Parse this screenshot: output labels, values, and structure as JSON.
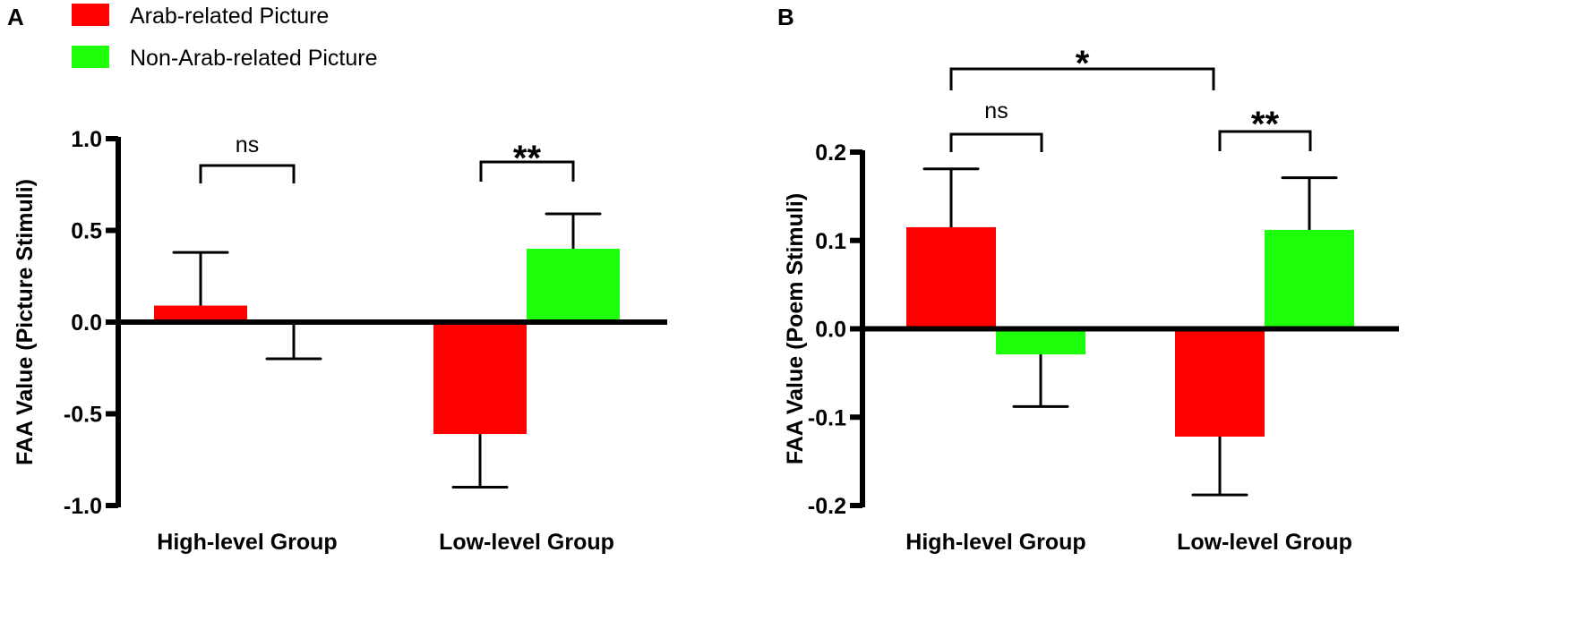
{
  "legend": {
    "items": [
      {
        "label": "Arab-related Picture",
        "color": "#ff0000"
      },
      {
        "label": "Non-Arab-related Picture",
        "color": "#1eff0a"
      }
    ],
    "placement": "top-left"
  },
  "chart_data": [
    {
      "type": "bar",
      "panel_label": "A",
      "categories": [
        "High-level Group",
        "Low-level Group"
      ],
      "ylabel": "FAA Value (Picture Stimuli)",
      "xlabel": "",
      "ylim": [
        -1.0,
        1.0
      ],
      "yticks": [
        1.0,
        0.5,
        0.0,
        -0.5,
        -1.0
      ],
      "ytick_labels": [
        "1.0",
        "0.5",
        "0.0",
        "-0.5",
        "-1.0"
      ],
      "series": [
        {
          "name": "Arab-related Picture",
          "values": [
            0.09,
            -0.61
          ],
          "error": [
            0.29,
            0.29
          ]
        },
        {
          "name": "Non-Arab-related Picture",
          "values": [
            -0.01,
            0.4
          ],
          "error": [
            0.19,
            0.19
          ]
        }
      ],
      "annotations": [
        {
          "text": "ns",
          "between": [
            "High-level Group Arab",
            "High-level Group Non-Arab"
          ]
        },
        {
          "text": "**",
          "between": [
            "Low-level Group Arab",
            "Low-level Group Non-Arab"
          ]
        }
      ]
    },
    {
      "type": "bar",
      "panel_label": "B",
      "categories": [
        "High-level Group",
        "Low-level Group"
      ],
      "ylabel": "FAA Value (Poem Stimuli)",
      "xlabel": "",
      "ylim": [
        -0.2,
        0.2
      ],
      "yticks": [
        0.2,
        0.1,
        0.0,
        -0.1,
        -0.2
      ],
      "ytick_labels": [
        "0.2",
        "0.1",
        "0.0",
        "-0.1",
        "-0.2"
      ],
      "series": [
        {
          "name": "Arab-related Picture",
          "values": [
            0.115,
            -0.122
          ],
          "error": [
            0.066,
            0.066
          ]
        },
        {
          "name": "Non-Arab-related Picture",
          "values": [
            -0.029,
            0.112
          ],
          "error": [
            0.059,
            0.059
          ]
        }
      ],
      "annotations": [
        {
          "text": "ns",
          "between": [
            "High-level Group Arab",
            "High-level Group Non-Arab"
          ]
        },
        {
          "text": "**",
          "between": [
            "Low-level Group Arab",
            "Low-level Group Non-Arab"
          ]
        },
        {
          "text": "*",
          "between": [
            "High-level Group Arab",
            "Low-level Group Arab"
          ]
        }
      ]
    }
  ]
}
